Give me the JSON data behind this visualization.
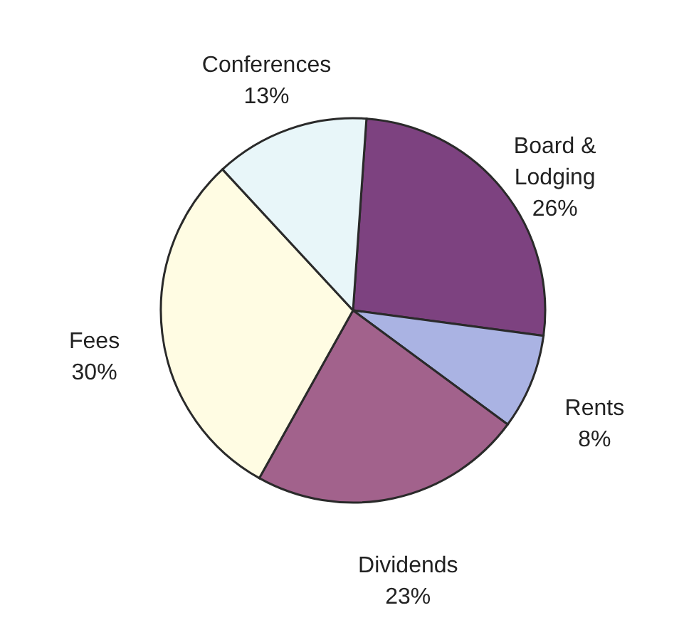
{
  "chart_data": {
    "type": "pie",
    "categories": [
      "Board & Lodging",
      "Rents",
      "Dividends",
      "Fees",
      "Conferences"
    ],
    "values": [
      26,
      8,
      23,
      30,
      13
    ],
    "value_labels": [
      "26%",
      "8%",
      "23%",
      "30%",
      "13%"
    ],
    "colors": [
      "#7d4280",
      "#aab3e3",
      "#a2628c",
      "#fffce3",
      "#e8f6f9"
    ]
  }
}
